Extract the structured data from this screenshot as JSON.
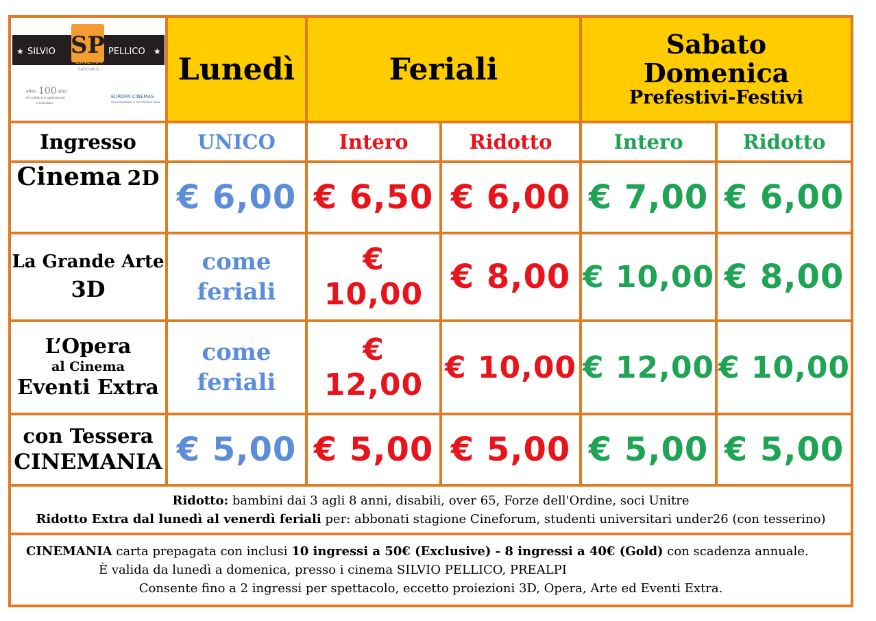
{
  "logo": {
    "left": "SILVIO",
    "right": "PELLICO",
    "cinema": "CINEMA",
    "city": "SARONNO",
    "tag_num": "100",
    "tag_line1": "oltre",
    "tag_line2": "anni",
    "tag_line3": "di cultura e spettacolo",
    "tag_line4": "a Saronno",
    "europa": "EUROPA CINEMAS",
    "europa_sub": "MEDIA PROGRAMME OF THE EUROPEAN UNION"
  },
  "headers": {
    "lunedi": "Lunedì",
    "feriali": "Feriali",
    "weekend_line1": "Sabato",
    "weekend_line2": "Domenica",
    "weekend_line3": "Prefestivi-Festivi"
  },
  "subheaders": {
    "ingresso": "Ingresso",
    "unico": "UNICO",
    "intero1": "Intero",
    "ridotto1": "Ridotto",
    "intero2": "Intero",
    "ridotto2": "Ridotto"
  },
  "rows": [
    {
      "label_a": "Cinema",
      "label_b": "2D",
      "lunedi": "€ 6,00",
      "fer_int": "€ 6,50",
      "fer_rid": "€ 6,00",
      "we_int": "€ 7,00",
      "we_rid": "€ 6,00"
    },
    {
      "label_a": "La Grande Arte",
      "label_b": "3D",
      "lunedi_a": "come",
      "lunedi_b": "feriali",
      "fer_int": "€ 10,00",
      "fer_rid": "€ 8,00",
      "we_int": "€ 10,00",
      "we_rid": "€ 8,00"
    },
    {
      "label_a": "L’Opera",
      "label_b": "al Cinema",
      "label_c": "Eventi Extra",
      "lunedi_a": "come",
      "lunedi_b": "feriali",
      "fer_int": "€ 12,00",
      "fer_rid": "€ 10,00",
      "we_int": "€ 12,00",
      "we_rid": "€ 10,00"
    },
    {
      "label_a": "con Tessera",
      "label_b": "CINEMANIA",
      "lunedi": "€ 5,00",
      "fer_int": "€ 5,00",
      "fer_rid": "€ 5,00",
      "we_int": "€ 5,00",
      "we_rid": "€ 5,00"
    }
  ],
  "notes1": {
    "l1_bold": "Ridotto:",
    "l1_rest": " bambini dai 3 agli 8 anni, disabili, over 65, Forze dell'Ordine, soci Unitre",
    "l2_bold": "Ridotto Extra dal lunedì al venerdì feriali",
    "l2_rest": " per: abbonati stagione Cineforum, studenti universitari under26 (con tesserino)"
  },
  "notes2": {
    "l1_bold_a": "CINEMANIA",
    "l1_rest_a": " carta prepagata con inclusi ",
    "l1_bold_b": "10 ingressi a 50€ (Exclusive) - 8 ingressi a 40€  (Gold)",
    "l1_rest_b": "  con scadenza annuale.",
    "l2": "È valida da lunedì a domenica, presso i cinema SILVIO PELLICO, PREALPI",
    "l3": "Consente fino a 2 ingressi per spettacolo, eccetto proiezioni 3D, Opera, Arte ed Eventi Extra."
  },
  "colors": {
    "border": "#e07b24",
    "header": "#ffcc00",
    "blue": "#5b8dd9",
    "red": "#e8141c",
    "green": "#1fa354"
  }
}
